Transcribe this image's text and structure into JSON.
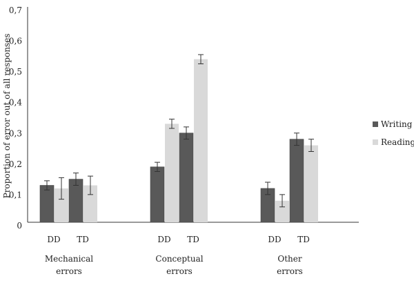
{
  "chart_data": {
    "type": "bar",
    "title": "",
    "xlabel": "",
    "ylabel": "Proportion of error out of all responses",
    "ylim": [
      0,
      0.7
    ],
    "yticks": [
      "0",
      "0,1",
      "0,2",
      "0,3",
      "0,4",
      "0,5",
      "0,6",
      "0,7"
    ],
    "grid": false,
    "legend_position": "right",
    "groups": [
      {
        "label_lines": [
          "Mechanical",
          "errors"
        ],
        "subcategories": [
          "DD",
          "TD"
        ]
      },
      {
        "label_lines": [
          "Conceptual",
          "errors"
        ],
        "subcategories": [
          "DD",
          "TD"
        ]
      },
      {
        "label_lines": [
          "Other",
          "errors"
        ],
        "subcategories": [
          "DD",
          "TD"
        ]
      }
    ],
    "series": [
      {
        "name": "Writing",
        "color": "#595959",
        "values": [
          [
            0.12,
            0.14
          ],
          [
            0.18,
            0.29
          ],
          [
            0.11,
            0.27
          ]
        ],
        "errors": [
          [
            0.015,
            0.02
          ],
          [
            0.015,
            0.02
          ],
          [
            0.02,
            0.02
          ]
        ]
      },
      {
        "name": "Reading",
        "color": "#d9d9d9",
        "values": [
          [
            0.11,
            0.12
          ],
          [
            0.32,
            0.53
          ],
          [
            0.07,
            0.25
          ]
        ],
        "errors": [
          [
            0.035,
            0.03
          ],
          [
            0.015,
            0.015
          ],
          [
            0.02,
            0.02
          ]
        ]
      }
    ]
  }
}
